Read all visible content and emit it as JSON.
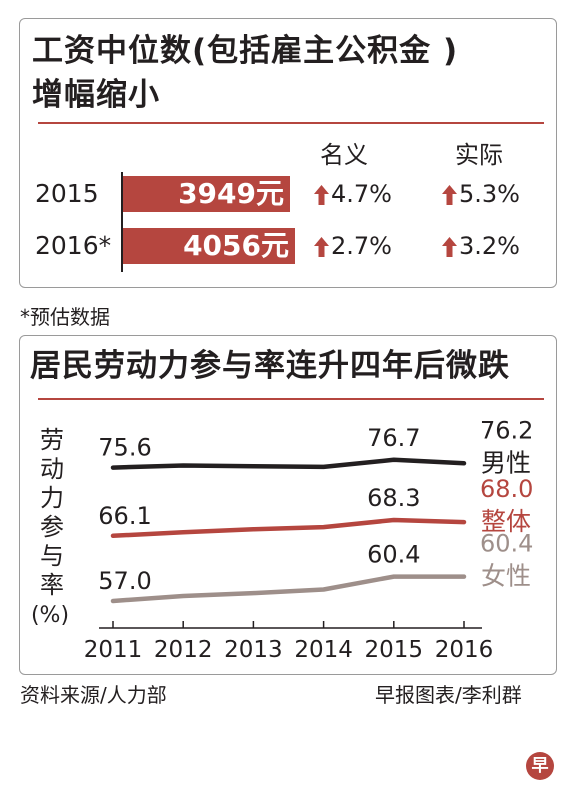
{
  "wage": {
    "title_line1": "工资中位数(包括雇主公积金 )",
    "title_line2": "增幅缩小",
    "col_nominal": "名义",
    "col_real": "实际",
    "rows": [
      {
        "year": "2015",
        "amount": 3949,
        "label": "3949元",
        "nominal": "4.7%",
        "real": "5.3%"
      },
      {
        "year": "2016*",
        "amount": 4056,
        "label": "4056元",
        "nominal": "2.7%",
        "real": "3.2%"
      }
    ],
    "footnote": "*预估数据",
    "bar_color": "#b5463f",
    "arrow_color": "#b5463f"
  },
  "chart_data": {
    "type": "line",
    "title": "居民劳动力参与率连升四年后微跌",
    "ylabel": "劳动力参与率",
    "yunit": "(%)",
    "x": [
      "2011",
      "2012",
      "2013",
      "2014",
      "2015",
      "2016"
    ],
    "ylim": [
      50,
      80
    ],
    "series": [
      {
        "name": "男性",
        "values": [
          75.6,
          75.9,
          75.8,
          75.7,
          76.7,
          76.2
        ],
        "color": "#231f20",
        "labels": [
          {
            "index": 0,
            "text": "75.6"
          },
          {
            "index": 4,
            "text": "76.7"
          },
          {
            "index": 5,
            "text": "76.2"
          }
        ]
      },
      {
        "name": "整体",
        "values": [
          66.1,
          66.6,
          67.0,
          67.3,
          68.3,
          68.0
        ],
        "color": "#b5463f",
        "labels": [
          {
            "index": 0,
            "text": "66.1"
          },
          {
            "index": 4,
            "text": "68.3"
          },
          {
            "index": 5,
            "text": "68.0"
          }
        ]
      },
      {
        "name": "女性",
        "values": [
          57.0,
          57.7,
          58.1,
          58.6,
          60.4,
          60.4
        ],
        "color": "#9e8f8a",
        "labels": [
          {
            "index": 0,
            "text": "57.0"
          },
          {
            "index": 4,
            "text": "60.4"
          },
          {
            "index": 5,
            "text": "60.4"
          }
        ]
      }
    ],
    "grid": false
  },
  "footer": {
    "source": "资料来源/人力部",
    "credit": "早报图表/李利群",
    "logo_char": "早"
  }
}
